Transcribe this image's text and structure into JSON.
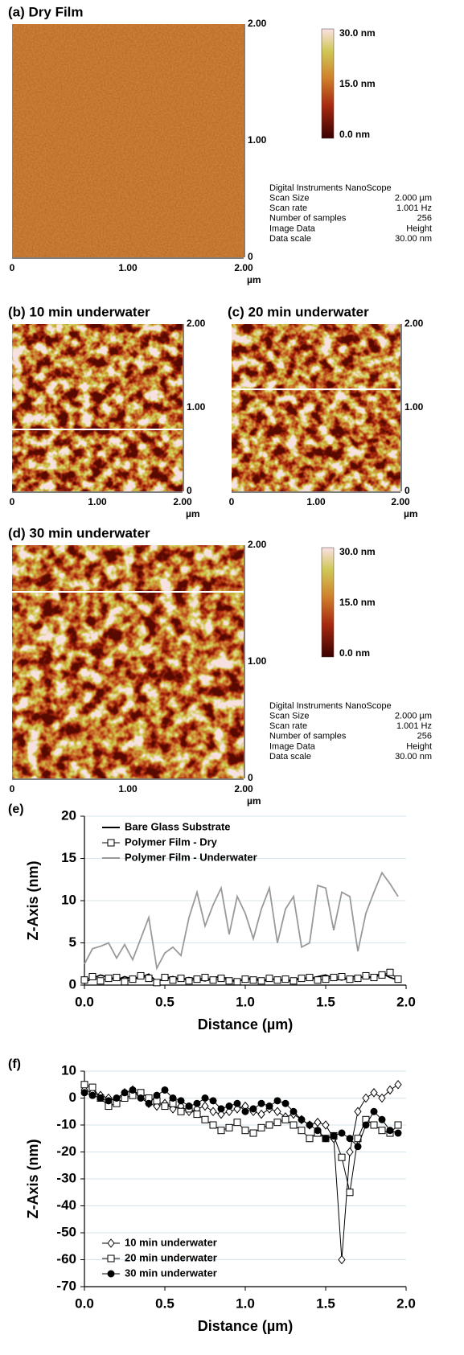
{
  "panels": [
    {
      "title": "(a) Dry Film",
      "yticks": [
        "2.00",
        "1.00",
        "0"
      ],
      "xticks": [
        "0",
        "1.00",
        "2.00"
      ],
      "unit": "µm",
      "colorbar": [
        "30.0 nm",
        "15.0 nm",
        "0.0 nm"
      ],
      "info": {
        "header": "Digital Instruments NanoScope",
        "rows": [
          [
            "Scan Size",
            "2.000 µm"
          ],
          [
            "Scan rate",
            "1.001 Hz"
          ],
          [
            "Number of samples",
            "256"
          ],
          [
            "Image Data",
            "Height"
          ],
          [
            "Data scale",
            "30.00 nm"
          ]
        ]
      }
    },
    {
      "title": "(b) 10 min underwater",
      "yticks": [
        "2.00",
        "1.00",
        "0"
      ],
      "xticks": [
        "0",
        "1.00",
        "2.00"
      ],
      "unit": "µm"
    },
    {
      "title": "(c) 20 min underwater",
      "yticks": [
        "2.00",
        "1.00",
        "0"
      ],
      "xticks": [
        "0",
        "1.00",
        "2.00"
      ],
      "unit": "µm"
    },
    {
      "title": "(d) 30 min underwater",
      "yticks": [
        "2.00",
        "1.00",
        "0"
      ],
      "xticks": [
        "0",
        "1.00",
        "2.00"
      ],
      "unit": "µm",
      "colorbar": [
        "30.0 nm",
        "15.0 nm",
        "0.0 nm"
      ],
      "info": {
        "header": "Digital Instruments NanoScope",
        "rows": [
          [
            "Scan Size",
            "2.000 µm"
          ],
          [
            "Scan rate",
            "1.001 Hz"
          ],
          [
            "Number of samples",
            "256"
          ],
          [
            "Image Data",
            "Height"
          ],
          [
            "Data scale",
            "30.00 nm"
          ]
        ]
      }
    }
  ],
  "chart_data": [
    {
      "type": "line",
      "panel_label": "(e)",
      "xlabel": "Distance (µm)",
      "ylabel": "Z-Axis (nm)",
      "xlim": [
        0,
        2
      ],
      "ylim": [
        0,
        20
      ],
      "xticks": [
        {
          "value": 0,
          "label": "0.0"
        },
        {
          "value": 0.5,
          "label": "0.5"
        },
        {
          "value": 1,
          "label": "1.0"
        },
        {
          "value": 1.5,
          "label": "1.5"
        },
        {
          "value": 2,
          "label": "2.0"
        }
      ],
      "yticks": [
        0,
        5,
        10,
        15,
        20
      ],
      "grid": true,
      "legend": "upper left",
      "x": [
        0,
        0.05,
        0.1,
        0.15,
        0.2,
        0.25,
        0.3,
        0.35,
        0.4,
        0.45,
        0.5,
        0.55,
        0.6,
        0.65,
        0.7,
        0.75,
        0.8,
        0.85,
        0.9,
        0.95,
        1.0,
        1.05,
        1.1,
        1.15,
        1.2,
        1.25,
        1.3,
        1.35,
        1.4,
        1.45,
        1.5,
        1.55,
        1.6,
        1.65,
        1.7,
        1.75,
        1.8,
        1.85,
        1.9,
        1.95
      ],
      "series": [
        {
          "name": "Bare Glass Substrate",
          "color": "#000000",
          "values": [
            0.3,
            0.8,
            1.2,
            0.9,
            0.6,
            1.0,
            0.7,
            0.9,
            1.3,
            0.4,
            0.8,
            1.0,
            0.6,
            0.9,
            0.7,
            0.5,
            0.8,
            1.1,
            0.6,
            0.5,
            0.7,
            0.9,
            0.5,
            0.6,
            0.8,
            0.4,
            0.6,
            0.9,
            0.7,
            1.0,
            1.2,
            0.8,
            0.6,
            0.9,
            1.1,
            0.8,
            1.0,
            1.4,
            0.9,
            0.6
          ]
        },
        {
          "name": "Polymer Film - Dry",
          "color": "#000000",
          "marker": "square",
          "values": [
            0.6,
            1.0,
            0.5,
            0.8,
            0.9,
            0.4,
            0.7,
            1.1,
            0.8,
            0.3,
            0.9,
            0.6,
            0.8,
            0.5,
            0.7,
            0.9,
            0.6,
            0.8,
            0.5,
            0.4,
            0.7,
            0.6,
            0.5,
            0.8,
            0.6,
            0.7,
            0.5,
            0.8,
            0.9,
            0.6,
            0.7,
            0.9,
            1.0,
            0.7,
            0.8,
            1.1,
            0.9,
            1.2,
            1.5,
            0.7
          ]
        },
        {
          "name": "Polymer Film - Underwater",
          "color": "#999999",
          "values": [
            2.5,
            4.3,
            4.6,
            5.0,
            3.2,
            4.8,
            3.0,
            5.5,
            8.0,
            2.0,
            3.8,
            4.5,
            3.5,
            8.0,
            11.0,
            7.0,
            9.5,
            11.5,
            6.0,
            10.5,
            8.5,
            5.5,
            9.0,
            11.5,
            5.0,
            9.0,
            10.5,
            4.5,
            5.0,
            11.8,
            11.5,
            6.5,
            11.0,
            10.5,
            4.0,
            8.5,
            11.0,
            13.3,
            12.0,
            10.5
          ]
        }
      ]
    },
    {
      "type": "line",
      "panel_label": "(f)",
      "xlabel": "Distance (µm)",
      "ylabel": "Z-Axis (nm)",
      "xlim": [
        0,
        2
      ],
      "ylim": [
        -70,
        10
      ],
      "xticks": [
        {
          "value": 0,
          "label": "0.0"
        },
        {
          "value": 0.5,
          "label": "0.5"
        },
        {
          "value": 1,
          "label": "1.0"
        },
        {
          "value": 1.5,
          "label": "1.5"
        },
        {
          "value": 2,
          "label": "2.0"
        }
      ],
      "yticks": [
        -70,
        -60,
        -50,
        -40,
        -30,
        -20,
        -10,
        0,
        10
      ],
      "grid": true,
      "legend": "lower left",
      "x": [
        0,
        0.05,
        0.1,
        0.15,
        0.2,
        0.25,
        0.3,
        0.35,
        0.4,
        0.45,
        0.5,
        0.55,
        0.6,
        0.65,
        0.7,
        0.75,
        0.8,
        0.85,
        0.9,
        0.95,
        1.0,
        1.05,
        1.1,
        1.15,
        1.2,
        1.25,
        1.3,
        1.35,
        1.4,
        1.45,
        1.5,
        1.55,
        1.6,
        1.65,
        1.7,
        1.75,
        1.8,
        1.85,
        1.9,
        1.95
      ],
      "series": [
        {
          "name": "10 min underwater",
          "color": "#000000",
          "marker": "diamond",
          "values": [
            3,
            2,
            1,
            0,
            -1,
            2,
            3,
            1,
            -2,
            -3,
            -2,
            -4,
            -3,
            -5,
            -4,
            -3,
            -5,
            -6,
            -5,
            -4,
            -3,
            -5,
            -6,
            -4,
            -5,
            -7,
            -6,
            -8,
            -10,
            -9,
            -10,
            -15,
            -60,
            -20,
            -5,
            0,
            2,
            0,
            3,
            5
          ]
        },
        {
          "name": "20 min underwater",
          "color": "#000000",
          "marker": "square",
          "values": [
            5,
            4,
            0,
            -3,
            -2,
            0,
            1,
            2,
            0,
            -1,
            -3,
            -2,
            -5,
            -4,
            -6,
            -8,
            -10,
            -12,
            -11,
            -9,
            -12,
            -13,
            -11,
            -10,
            -9,
            -8,
            -10,
            -12,
            -15,
            -13,
            -15,
            -14,
            -22,
            -35,
            -15,
            -8,
            -10,
            -12,
            -13,
            -10
          ]
        },
        {
          "name": "30 min underwater",
          "color": "#000000",
          "marker": "circle",
          "values": [
            2,
            1,
            0,
            -1,
            0,
            2,
            3,
            0,
            -2,
            1,
            3,
            0,
            -1,
            -3,
            -2,
            0,
            -1,
            -4,
            -3,
            -2,
            -5,
            -4,
            -2,
            -3,
            -1,
            -2,
            -5,
            -8,
            -10,
            -12,
            -15,
            -14,
            -13,
            -15,
            -18,
            -10,
            -5,
            -8,
            -12,
            -13
          ]
        }
      ]
    }
  ]
}
